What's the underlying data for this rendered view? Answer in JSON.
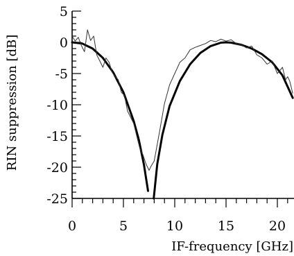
{
  "chart_data": {
    "type": "line",
    "xlabel": "IF-frequency [GHz]",
    "ylabel": "RIN suppression [dB]",
    "xlim": [
      0,
      22
    ],
    "ylim": [
      -25,
      5
    ],
    "x_ticks": [
      0,
      5,
      10,
      15,
      20
    ],
    "y_ticks": [
      5,
      0,
      -5,
      -10,
      -15,
      -20,
      -25
    ],
    "x_tick_labels": [
      "0",
      "5",
      "10",
      "15",
      "20"
    ],
    "y_tick_labels": [
      "5",
      "0",
      "-5",
      "-10",
      "-15",
      "-20",
      "-25"
    ],
    "grid": false,
    "legend": "none",
    "series": [
      {
        "style": "thick",
        "segments": [
          {
            "x": [
              0,
              1,
              2,
              3,
              4,
              5,
              6,
              6.5,
              7,
              7.4
            ],
            "y": [
              0,
              -0.2,
              -1,
              -2.5,
              -4.8,
              -8,
              -12.6,
              -15.6,
              -19.6,
              -23.8
            ]
          },
          {
            "x": [
              7.95,
              8.3,
              8.8,
              9.5,
              10.5,
              11.5,
              12.5,
              13.5,
              14.5,
              15,
              15.5,
              16.5,
              17.5,
              18.5,
              19.5,
              20.5,
              21.5
            ],
            "y": [
              -25,
              -19.5,
              -14.8,
              -10.2,
              -6.2,
              -3.5,
              -1.7,
              -0.6,
              -0.05,
              0,
              -0.05,
              -0.4,
              -1,
              -1.9,
              -3.2,
              -5.3,
              -8.9
            ]
          }
        ]
      },
      {
        "style": "thin-noisy",
        "x": [
          0,
          0.3,
          0.6,
          0.9,
          1.2,
          1.5,
          1.8,
          2.1,
          2.4,
          2.7,
          3,
          3.3,
          3.6,
          3.9,
          4.2,
          4.5,
          4.8,
          5.1,
          5.4,
          5.7,
          6,
          6.3,
          6.6,
          6.9,
          7.2,
          7.5,
          7.7,
          8,
          8.5,
          9,
          9.5,
          10,
          10.5,
          11,
          11.5,
          12,
          12.5,
          13,
          13.5,
          14,
          14.5,
          15,
          15.5,
          16,
          16.5,
          17,
          17.5,
          18,
          18.5,
          19,
          19.5,
          20,
          20.5,
          20.8,
          21,
          21.2,
          21.5
        ],
        "y": [
          1,
          0.2,
          0.8,
          -0.5,
          -1.5,
          2,
          0.3,
          1,
          -2,
          -3,
          -4,
          -2.5,
          -3.2,
          -4.8,
          -5.5,
          -6,
          -8,
          -8.5,
          -11,
          -12,
          -13,
          -15,
          -17,
          -18,
          -19.5,
          -20.5,
          -19.8,
          -19,
          -14.5,
          -9.8,
          -6.8,
          -5,
          -3.2,
          -2.5,
          -1.2,
          -0.8,
          -0.5,
          -0.2,
          0.3,
          0.1,
          0.5,
          0.2,
          0.4,
          -0.2,
          -0.4,
          -0.9,
          -0.6,
          -2,
          -2.5,
          -3.5,
          -3,
          -5,
          -4,
          -6,
          -5.5,
          -6.2,
          -8.2
        ]
      }
    ]
  }
}
